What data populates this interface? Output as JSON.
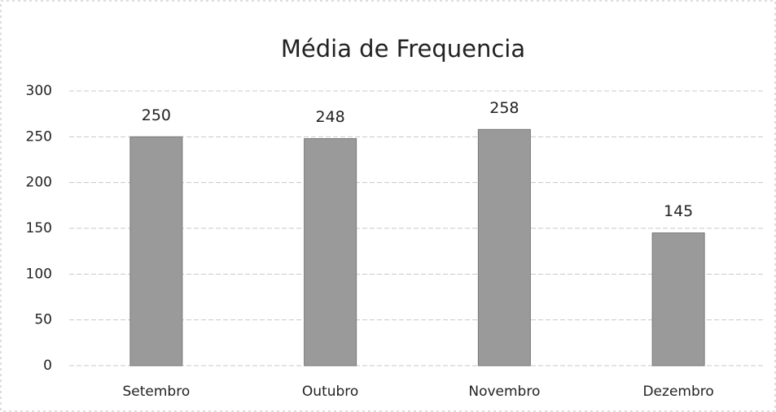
{
  "chart_data": {
    "type": "bar",
    "title": "Média de Frequencia",
    "categories": [
      "Setembro",
      "Outubro",
      "Novembro",
      "Dezembro"
    ],
    "values": [
      250,
      248,
      258,
      145
    ],
    "color": "#9a9a9a",
    "ylim": [
      0,
      300
    ],
    "yticks": [
      0,
      50,
      100,
      150,
      200,
      250,
      300
    ],
    "grid": true
  }
}
